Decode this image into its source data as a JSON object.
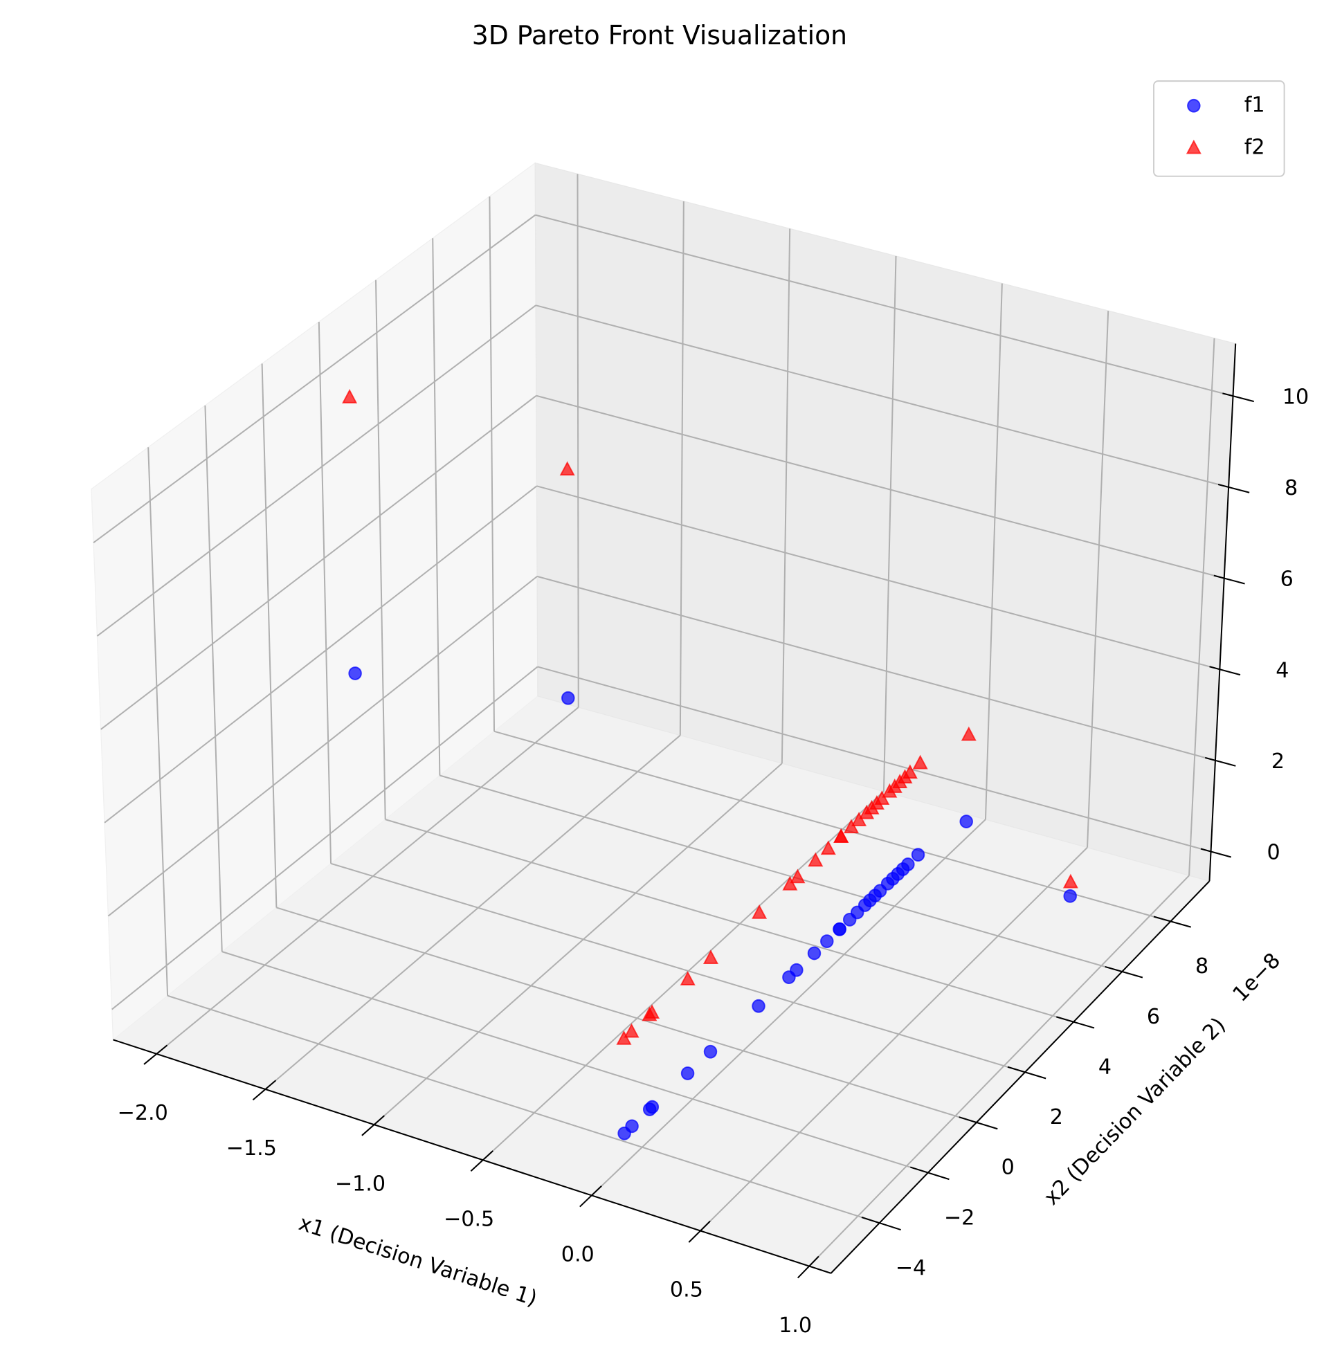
{
  "chart_data": {
    "type": "scatter3d",
    "title": "3D Pareto Front Visualization",
    "xlabel": "x1 (Decision Variable 1)",
    "ylabel": "x2 (Decision Variable 2)",
    "y_offset_label": "1e−8",
    "x": [
      -2,
      -1.5,
      0.05,
      0.85,
      0,
      0,
      0,
      0,
      0,
      0,
      0,
      0,
      0,
      0,
      0,
      0,
      0,
      0,
      0,
      0,
      0,
      0,
      0,
      0,
      0,
      0,
      0,
      0,
      0
    ],
    "y": [
      1.5,
      5.4,
      8.4,
      5.9,
      -4.7,
      -4.4,
      -3.7,
      -3.6,
      -2.2,
      -1.3,
      0.6,
      1.8,
      2.1,
      2.8,
      3.3,
      3.8,
      3.8,
      4.2,
      4.5,
      4.8,
      5.0,
      5.2,
      5.4,
      5.7,
      5.9,
      6.1,
      6.3,
      6.5,
      6.9
    ],
    "series": [
      {
        "name": "f1",
        "color": "blue",
        "marker": "circle",
        "alpha": 0.7,
        "values": [
          4,
          2.25,
          0.0025,
          0.7225,
          0,
          0,
          0,
          0,
          0,
          0,
          0,
          0,
          0,
          0,
          0,
          0,
          0,
          0,
          0,
          0,
          0,
          0,
          0,
          0,
          0,
          0,
          0,
          0,
          0
        ]
      },
      {
        "name": "f2",
        "color": "red",
        "marker": "triangle",
        "alpha": 0.7,
        "values": [
          10,
          7.25,
          1.9025,
          1.0225,
          2,
          2,
          2,
          2,
          2,
          2,
          2,
          2,
          2,
          2,
          2,
          2,
          2,
          2,
          2,
          2,
          2,
          2,
          2,
          2,
          2,
          2,
          2,
          2,
          2
        ]
      }
    ],
    "xlim": [
      -2.2,
      1.1
    ],
    "xticks": [
      {
        "value": -2,
        "label": "−2.0"
      },
      {
        "value": -1.5,
        "label": "−1.5"
      },
      {
        "value": -1,
        "label": "−1.0"
      },
      {
        "value": -0.5,
        "label": "−0.5"
      },
      {
        "value": 0,
        "label": "0.0"
      },
      {
        "value": 0.5,
        "label": "0.5"
      },
      {
        "value": 1,
        "label": "1.0"
      }
    ],
    "ylim": [
      -6,
      9.6
    ],
    "yticks": [
      {
        "value": -4,
        "label": "−4"
      },
      {
        "value": -2,
        "label": "−2"
      },
      0,
      2,
      4,
      6,
      8
    ],
    "zlim": [
      -0.65,
      11.15
    ],
    "zticks": [
      0,
      2,
      4,
      6,
      8,
      10
    ],
    "grid": true,
    "legend_loc": "upper right"
  }
}
